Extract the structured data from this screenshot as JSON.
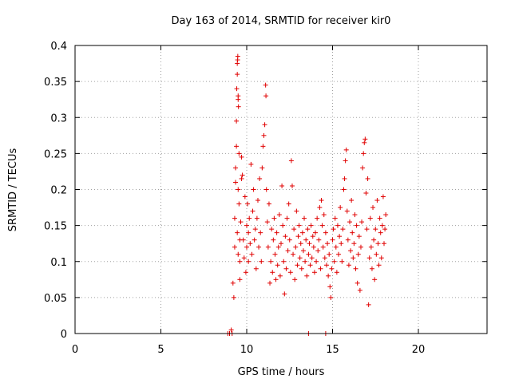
{
  "chart_data": {
    "type": "scatter",
    "title": "Day 163 of 2014, SRMTID for receiver kir0",
    "xlabel": "GPS time / hours",
    "ylabel": "SRMTID / TECUs",
    "xlim": [
      0,
      24
    ],
    "ylim": [
      0,
      0.4
    ],
    "xticks": [
      0,
      5,
      10,
      15,
      20
    ],
    "yticks": [
      0,
      0.05,
      0.1,
      0.15,
      0.2,
      0.25,
      0.3,
      0.35,
      0.4
    ],
    "xtick_labels": [
      "0",
      "5",
      "10",
      "15",
      "20"
    ],
    "ytick_labels": [
      "0",
      "0.05",
      "0.1",
      "0.15",
      "0.2",
      "0.25",
      "0.3",
      "0.35",
      "0.4"
    ],
    "grid": true,
    "series": [
      {
        "name": "SRMTID",
        "color": "#e00000",
        "marker": "plus",
        "points": [
          [
            8.9,
            0.0
          ],
          [
            9.0,
            0.0
          ],
          [
            9.1,
            0.005
          ],
          [
            9.15,
            0.0
          ],
          [
            13.6,
            0.0
          ],
          [
            14.6,
            0.0
          ],
          [
            9.2,
            0.07
          ],
          [
            9.25,
            0.05
          ],
          [
            9.3,
            0.12
          ],
          [
            9.3,
            0.16
          ],
          [
            9.35,
            0.21
          ],
          [
            9.35,
            0.23
          ],
          [
            9.4,
            0.26
          ],
          [
            9.4,
            0.295
          ],
          [
            9.42,
            0.34
          ],
          [
            9.45,
            0.36
          ],
          [
            9.45,
            0.375
          ],
          [
            9.47,
            0.38
          ],
          [
            9.48,
            0.385
          ],
          [
            9.5,
            0.33
          ],
          [
            9.5,
            0.325
          ],
          [
            9.52,
            0.315
          ],
          [
            9.45,
            0.14
          ],
          [
            9.5,
            0.11
          ],
          [
            9.5,
            0.2
          ],
          [
            9.55,
            0.18
          ],
          [
            9.55,
            0.25
          ],
          [
            9.6,
            0.075
          ],
          [
            9.6,
            0.1
          ],
          [
            9.6,
            0.13
          ],
          [
            9.65,
            0.155
          ],
          [
            9.7,
            0.215
          ],
          [
            9.7,
            0.245
          ],
          [
            9.75,
            0.22
          ],
          [
            9.8,
            0.13
          ],
          [
            9.85,
            0.105
          ],
          [
            9.9,
            0.19
          ],
          [
            9.95,
            0.085
          ],
          [
            10.0,
            0.12
          ],
          [
            10.0,
            0.15
          ],
          [
            10.05,
            0.18
          ],
          [
            10.1,
            0.1
          ],
          [
            10.1,
            0.14
          ],
          [
            10.15,
            0.16
          ],
          [
            10.2,
            0.125
          ],
          [
            10.25,
            0.235
          ],
          [
            10.3,
            0.11
          ],
          [
            10.35,
            0.17
          ],
          [
            10.4,
            0.2
          ],
          [
            10.45,
            0.13
          ],
          [
            10.5,
            0.145
          ],
          [
            10.55,
            0.09
          ],
          [
            10.6,
            0.16
          ],
          [
            10.65,
            0.185
          ],
          [
            10.7,
            0.12
          ],
          [
            10.75,
            0.215
          ],
          [
            10.8,
            0.14
          ],
          [
            10.85,
            0.1
          ],
          [
            10.9,
            0.23
          ],
          [
            10.95,
            0.26
          ],
          [
            11.0,
            0.275
          ],
          [
            11.05,
            0.29
          ],
          [
            11.1,
            0.345
          ],
          [
            11.12,
            0.33
          ],
          [
            11.15,
            0.2
          ],
          [
            11.2,
            0.155
          ],
          [
            11.25,
            0.12
          ],
          [
            11.3,
            0.18
          ],
          [
            11.35,
            0.07
          ],
          [
            11.4,
            0.1
          ],
          [
            11.45,
            0.145
          ],
          [
            11.5,
            0.085
          ],
          [
            11.55,
            0.13
          ],
          [
            11.6,
            0.16
          ],
          [
            11.65,
            0.11
          ],
          [
            11.7,
            0.075
          ],
          [
            11.75,
            0.14
          ],
          [
            11.8,
            0.095
          ],
          [
            11.85,
            0.12
          ],
          [
            11.9,
            0.165
          ],
          [
            11.95,
            0.08
          ],
          [
            12.0,
            0.125
          ],
          [
            12.05,
            0.205
          ],
          [
            12.1,
            0.15
          ],
          [
            12.15,
            0.1
          ],
          [
            12.2,
            0.055
          ],
          [
            12.25,
            0.135
          ],
          [
            12.3,
            0.09
          ],
          [
            12.35,
            0.16
          ],
          [
            12.4,
            0.115
          ],
          [
            12.45,
            0.18
          ],
          [
            12.5,
            0.13
          ],
          [
            12.55,
            0.085
          ],
          [
            12.6,
            0.24
          ],
          [
            12.65,
            0.205
          ],
          [
            12.7,
            0.11
          ],
          [
            12.75,
            0.145
          ],
          [
            12.8,
            0.075
          ],
          [
            12.85,
            0.12
          ],
          [
            12.9,
            0.17
          ],
          [
            12.95,
            0.095
          ],
          [
            13.0,
            0.135
          ],
          [
            13.05,
            0.15
          ],
          [
            13.1,
            0.105
          ],
          [
            13.15,
            0.125
          ],
          [
            13.2,
            0.09
          ],
          [
            13.25,
            0.14
          ],
          [
            13.3,
            0.115
          ],
          [
            13.35,
            0.16
          ],
          [
            13.4,
            0.1
          ],
          [
            13.45,
            0.13
          ],
          [
            13.5,
            0.08
          ],
          [
            13.55,
            0.145
          ],
          [
            13.6,
            0.11
          ],
          [
            13.65,
            0.125
          ],
          [
            13.7,
            0.095
          ],
          [
            13.75,
            0.15
          ],
          [
            13.8,
            0.105
          ],
          [
            13.85,
            0.135
          ],
          [
            13.9,
            0.12
          ],
          [
            13.95,
            0.085
          ],
          [
            14.0,
            0.14
          ],
          [
            14.05,
            0.1
          ],
          [
            14.1,
            0.16
          ],
          [
            14.15,
            0.115
          ],
          [
            14.2,
            0.13
          ],
          [
            14.25,
            0.175
          ],
          [
            14.3,
            0.09
          ],
          [
            14.35,
            0.185
          ],
          [
            14.4,
            0.15
          ],
          [
            14.45,
            0.12
          ],
          [
            14.5,
            0.165
          ],
          [
            14.55,
            0.105
          ],
          [
            14.6,
            0.14
          ],
          [
            14.65,
            0.095
          ],
          [
            14.7,
            0.125
          ],
          [
            14.75,
            0.08
          ],
          [
            14.8,
            0.11
          ],
          [
            14.85,
            0.065
          ],
          [
            14.9,
            0.05
          ],
          [
            14.95,
            0.09
          ],
          [
            15.0,
            0.13
          ],
          [
            15.05,
            0.145
          ],
          [
            15.1,
            0.1
          ],
          [
            15.15,
            0.16
          ],
          [
            15.2,
            0.12
          ],
          [
            15.25,
            0.085
          ],
          [
            15.3,
            0.15
          ],
          [
            15.35,
            0.11
          ],
          [
            15.4,
            0.135
          ],
          [
            15.45,
            0.175
          ],
          [
            15.5,
            0.125
          ],
          [
            15.55,
            0.1
          ],
          [
            15.6,
            0.145
          ],
          [
            15.65,
            0.2
          ],
          [
            15.7,
            0.215
          ],
          [
            15.75,
            0.24
          ],
          [
            15.8,
            0.255
          ],
          [
            15.85,
            0.17
          ],
          [
            15.9,
            0.13
          ],
          [
            15.95,
            0.095
          ],
          [
            16.0,
            0.155
          ],
          [
            16.05,
            0.115
          ],
          [
            16.1,
            0.185
          ],
          [
            16.15,
            0.14
          ],
          [
            16.2,
            0.105
          ],
          [
            16.25,
            0.125
          ],
          [
            16.3,
            0.165
          ],
          [
            16.35,
            0.09
          ],
          [
            16.4,
            0.15
          ],
          [
            16.45,
            0.07
          ],
          [
            16.5,
            0.11
          ],
          [
            16.55,
            0.135
          ],
          [
            16.6,
            0.06
          ],
          [
            16.65,
            0.12
          ],
          [
            16.7,
            0.155
          ],
          [
            16.75,
            0.23
          ],
          [
            16.8,
            0.25
          ],
          [
            16.85,
            0.265
          ],
          [
            16.9,
            0.27
          ],
          [
            16.95,
            0.195
          ],
          [
            17.0,
            0.145
          ],
          [
            17.05,
            0.215
          ],
          [
            17.1,
            0.04
          ],
          [
            17.15,
            0.105
          ],
          [
            17.2,
            0.16
          ],
          [
            17.25,
            0.12
          ],
          [
            17.3,
            0.09
          ],
          [
            17.35,
            0.175
          ],
          [
            17.4,
            0.13
          ],
          [
            17.45,
            0.075
          ],
          [
            17.5,
            0.145
          ],
          [
            17.55,
            0.11
          ],
          [
            17.6,
            0.185
          ],
          [
            17.65,
            0.125
          ],
          [
            17.7,
            0.095
          ],
          [
            17.75,
            0.16
          ],
          [
            17.8,
            0.14
          ],
          [
            17.85,
            0.105
          ],
          [
            17.9,
            0.15
          ],
          [
            17.95,
            0.19
          ],
          [
            18.0,
            0.125
          ],
          [
            18.05,
            0.145
          ],
          [
            18.1,
            0.165
          ]
        ]
      }
    ]
  }
}
